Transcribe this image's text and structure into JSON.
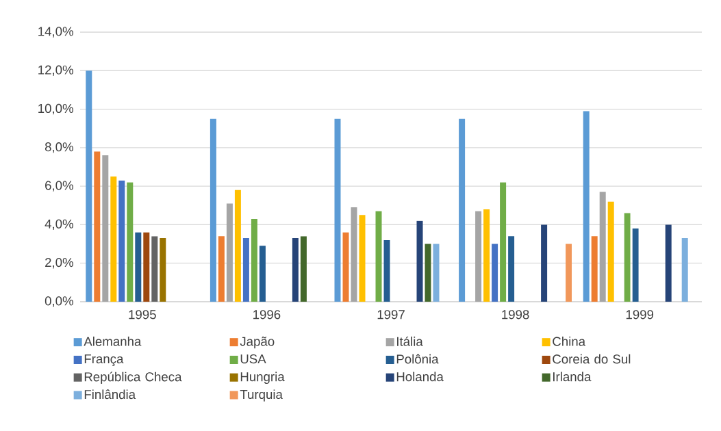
{
  "chart_data": {
    "type": "bar",
    "categories": [
      "1995",
      "1996",
      "1997",
      "1998",
      "1999"
    ],
    "series": [
      {
        "name": "Alemanha",
        "color": "#5b9bd5",
        "values": [
          12.0,
          9.5,
          9.5,
          9.5,
          9.9
        ]
      },
      {
        "name": "Japão",
        "color": "#ed7d31",
        "values": [
          7.8,
          3.4,
          3.6,
          null,
          3.4
        ]
      },
      {
        "name": "Itália",
        "color": "#a5a5a5",
        "values": [
          7.6,
          5.1,
          4.9,
          4.7,
          5.7
        ]
      },
      {
        "name": "China",
        "color": "#ffc000",
        "values": [
          6.5,
          5.8,
          4.5,
          4.8,
          5.2
        ]
      },
      {
        "name": "França",
        "color": "#4472c4",
        "values": [
          6.3,
          3.3,
          null,
          3.0,
          null
        ]
      },
      {
        "name": "USA",
        "color": "#70ad47",
        "values": [
          6.2,
          4.3,
          4.7,
          6.2,
          4.6
        ]
      },
      {
        "name": "Polônia",
        "color": "#255e91",
        "values": [
          3.6,
          2.9,
          3.2,
          3.4,
          3.8
        ]
      },
      {
        "name": "Coreia do Sul",
        "color": "#9e480e",
        "values": [
          3.6,
          null,
          null,
          null,
          null
        ]
      },
      {
        "name": "República Checa",
        "color": "#636363",
        "values": [
          3.4,
          null,
          null,
          null,
          null
        ]
      },
      {
        "name": "Hungria",
        "color": "#997300",
        "values": [
          3.3,
          null,
          null,
          null,
          null
        ]
      },
      {
        "name": "Holanda",
        "color": "#264478",
        "values": [
          null,
          3.3,
          4.2,
          4.0,
          4.0
        ]
      },
      {
        "name": "Irlanda",
        "color": "#43682b",
        "values": [
          null,
          3.4,
          3.0,
          null,
          null
        ]
      },
      {
        "name": "Finlândia",
        "color": "#7cafdd",
        "values": [
          null,
          null,
          3.0,
          null,
          3.3
        ]
      },
      {
        "name": "Turquia",
        "color": "#f1975a",
        "values": [
          null,
          null,
          null,
          3.0,
          null
        ]
      }
    ],
    "ylim": [
      0,
      14
    ],
    "yticks": [
      {
        "value": 0,
        "label": "0,0%"
      },
      {
        "value": 2,
        "label": "2,0%"
      },
      {
        "value": 4,
        "label": "4,0%"
      },
      {
        "value": 6,
        "label": "6,0%"
      },
      {
        "value": 8,
        "label": "8,0%"
      },
      {
        "value": 10,
        "label": "10,0%"
      },
      {
        "value": 12,
        "label": "12,0%"
      },
      {
        "value": 14,
        "label": "14,0%"
      }
    ],
    "grid": "y",
    "legend": "bottom"
  }
}
